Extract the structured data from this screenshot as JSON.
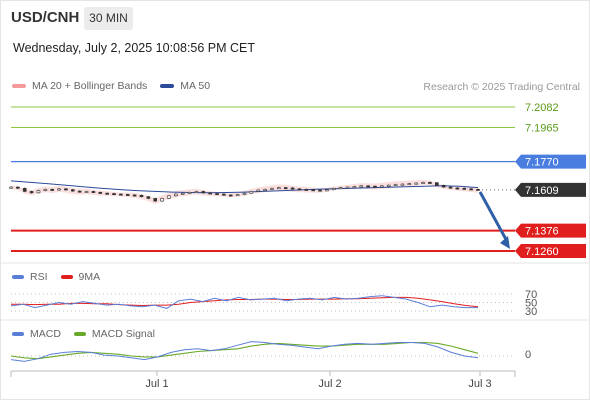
{
  "header": {
    "symbol": "USD/CNH",
    "timeframe": "30 MIN",
    "timestamp": "Wednesday, July 2, 2025 10:08:56 PM CET"
  },
  "legend": {
    "items": [
      {
        "label": "MA 20 + Bollinger Bands",
        "color": "#f49a9a"
      },
      {
        "label": "MA 50",
        "color": "#2b4a9a"
      }
    ],
    "credit": "Research © 2025 Trading Central"
  },
  "colors": {
    "resistance": "#8dc63f",
    "resistance_text": "#5a9a1a",
    "pivot": "#4a7de0",
    "support": "#e01e1e",
    "price_tag": "#333333",
    "candle": "#333333",
    "ma50": "#2b4a9a",
    "bollinger": "#f6c5c5",
    "arrow": "#2e5fa7",
    "rsi": "#5b7fd8",
    "rsi_ma": "#e01e1e",
    "macd": "#5b7fd8",
    "macd_signal": "#6aaa2a"
  },
  "chart_data": [
    {
      "type": "line",
      "panel": "price",
      "ylim": [
        7.118,
        7.212
      ],
      "x_tick_labels": [
        "Jul 1",
        "Jul 2",
        "Jul 3"
      ],
      "levels": [
        {
          "value": 7.2082,
          "label": "7.2082",
          "kind": "resistance"
        },
        {
          "value": 7.1965,
          "label": "7.1965",
          "kind": "resistance"
        },
        {
          "value": 7.177,
          "label": "7.1770",
          "kind": "pivot"
        },
        {
          "value": 7.1609,
          "label": "7.1609",
          "kind": "last"
        },
        {
          "value": 7.1376,
          "label": "7.1376",
          "kind": "support"
        },
        {
          "value": 7.126,
          "label": "7.1260",
          "kind": "support"
        }
      ],
      "series": [
        {
          "name": "Price",
          "values": [
            7.1625,
            7.1618,
            7.16,
            7.1592,
            7.1605,
            7.1612,
            7.1608,
            7.1615,
            7.161,
            7.1602,
            7.1598,
            7.16,
            7.1595,
            7.159,
            7.1588,
            7.1585,
            7.1583,
            7.158,
            7.1578,
            7.157,
            7.156,
            7.1545,
            7.156,
            7.1575,
            7.1585,
            7.159,
            7.1595,
            7.16,
            7.1592,
            7.1588,
            7.1585,
            7.158,
            7.1578,
            7.1582,
            7.159,
            7.16,
            7.1608,
            7.1612,
            7.1618,
            7.1622,
            7.162,
            7.1615,
            7.1612,
            7.161,
            7.1608,
            7.1605,
            7.161,
            7.1618,
            7.1622,
            7.1625,
            7.1628,
            7.1632,
            7.163,
            7.1628,
            7.1632,
            7.1636,
            7.164,
            7.1642,
            7.1645,
            7.1648,
            7.1652,
            7.165,
            7.1635,
            7.1625,
            7.162,
            7.1618,
            7.1615,
            7.1612,
            7.1609
          ]
        },
        {
          "name": "MA 50",
          "values": [
            7.166,
            7.1653,
            7.1645,
            7.1636,
            7.1627,
            7.1618,
            7.1611,
            7.1605,
            7.16,
            7.1596,
            7.1594,
            7.1593,
            7.1594,
            7.1596,
            7.16,
            7.1604,
            7.1608,
            7.1612,
            7.1615,
            7.1618,
            7.1621,
            7.1624,
            7.1627,
            7.163,
            7.1632,
            7.163,
            7.1622
          ]
        }
      ]
    },
    {
      "type": "line",
      "panel": "rsi",
      "ylim": [
        30,
        70
      ],
      "y_tick_labels": [
        "70",
        "50",
        "30"
      ],
      "series": [
        {
          "name": "RSI",
          "values": [
            42,
            46,
            38,
            44,
            50,
            46,
            52,
            48,
            44,
            46,
            42,
            40,
            44,
            36,
            54,
            58,
            52,
            60,
            54,
            62,
            56,
            58,
            60,
            54,
            58,
            60,
            56,
            62,
            58,
            60,
            64,
            66,
            62,
            58,
            50,
            40,
            44,
            40,
            38,
            38
          ]
        },
        {
          "name": "9MA",
          "values": [
            46,
            46,
            45,
            46,
            46,
            48,
            48,
            47,
            47,
            45,
            44,
            43,
            44,
            44,
            46,
            50,
            52,
            54,
            56,
            57,
            57,
            58,
            58,
            57,
            57,
            58,
            58,
            58,
            59,
            59,
            60,
            61,
            62,
            62,
            60,
            56,
            52,
            47,
            43,
            40
          ]
        }
      ]
    },
    {
      "type": "line",
      "panel": "macd",
      "y_tick_labels": [
        "0"
      ],
      "series": [
        {
          "name": "MACD",
          "values": [
            -0.0004,
            -0.0006,
            -0.0003,
            0.0002,
            0.0004,
            0.0005,
            0.0004,
            0.0001,
            0.0,
            -0.0002,
            -0.0004,
            -0.0001,
            0.0004,
            0.0007,
            0.0008,
            0.0006,
            0.0008,
            0.0012,
            0.0016,
            0.0015,
            0.0013,
            0.0012,
            0.001,
            0.0008,
            0.0011,
            0.0013,
            0.0014,
            0.0013,
            0.0014,
            0.0015,
            0.0015,
            0.0014,
            0.001,
            0.0004,
            0.0,
            -0.0002
          ]
        },
        {
          "name": "MACD Signal",
          "values": [
            0.0,
            -0.0002,
            -0.0003,
            -0.0001,
            0.0001,
            0.0003,
            0.0004,
            0.0003,
            0.0002,
            0.0,
            -0.0001,
            -0.0001,
            0.0001,
            0.0003,
            0.0005,
            0.0006,
            0.0007,
            0.0008,
            0.0011,
            0.0013,
            0.0014,
            0.0013,
            0.0012,
            0.0011,
            0.0011,
            0.0012,
            0.0013,
            0.0013,
            0.0013,
            0.0014,
            0.0015,
            0.0015,
            0.0014,
            0.0011,
            0.0007,
            0.0003
          ]
        }
      ]
    }
  ],
  "rsi_legend": [
    {
      "label": "RSI",
      "color": "#5b7fd8"
    },
    {
      "label": "9MA",
      "color": "#e01e1e"
    }
  ],
  "macd_legend": [
    {
      "label": "MACD",
      "color": "#5b7fd8"
    },
    {
      "label": "MACD Signal",
      "color": "#6aaa2a"
    }
  ]
}
